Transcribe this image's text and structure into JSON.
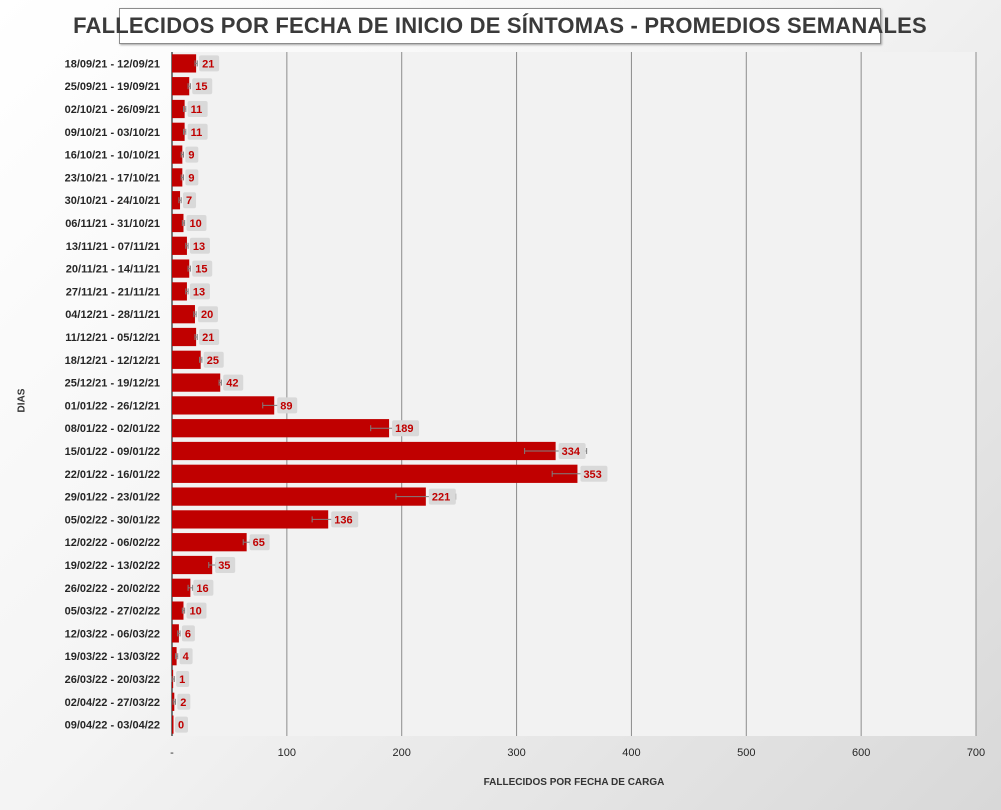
{
  "chart_data": {
    "type": "bar",
    "orientation": "horizontal",
    "title": "FALLECIDOS POR FECHA DE INICIO DE SÍNTOMAS - PROMEDIOS SEMANALES",
    "xlabel": "FALLECIDOS POR FECHA DE CARGA",
    "ylabel": "DIAS",
    "xlim": [
      0,
      700
    ],
    "xticks": [
      0,
      100,
      200,
      300,
      400,
      500,
      600,
      700
    ],
    "xtick_labels": [
      "-",
      "100",
      "200",
      "300",
      "400",
      "500",
      "600",
      "700"
    ],
    "grid": true,
    "bar_color": "#c00000",
    "label_bg_color": "#d9d9d9",
    "label_color": "#c00000",
    "plot_bg_color": "#f2f2f2",
    "categories": [
      "18/09/21 - 12/09/21",
      "25/09/21 - 19/09/21",
      "02/10/21 - 26/09/21",
      "09/10/21 - 03/10/21",
      "16/10/21 - 10/10/21",
      "23/10/21 - 17/10/21",
      "30/10/21 - 24/10/21",
      "06/11/21 - 31/10/21",
      "13/11/21 - 07/11/21",
      "20/11/21 - 14/11/21",
      "27/11/21 - 21/11/21",
      "04/12/21 - 28/11/21",
      "11/12/21 - 05/12/21",
      "18/12/21 - 12/12/21",
      "25/12/21 - 19/12/21",
      "01/01/22 - 26/12/21",
      "08/01/22 - 02/01/22",
      "15/01/22 - 09/01/22",
      "22/01/22 - 16/01/22",
      "29/01/22 - 23/01/22",
      "05/02/22 - 30/01/22",
      "12/02/22 - 06/02/22",
      "19/02/22 - 13/02/22",
      "26/02/22 - 20/02/22",
      "05/03/22 - 27/02/22",
      "12/03/22 - 06/03/22",
      "19/03/22 - 13/03/22",
      "26/03/22 - 20/03/22",
      "02/04/22 - 27/03/22",
      "09/04/22 - 03/04/22"
    ],
    "values": [
      21,
      15,
      11,
      11,
      9,
      9,
      7,
      10,
      13,
      15,
      13,
      20,
      21,
      25,
      42,
      89,
      189,
      334,
      353,
      221,
      136,
      65,
      35,
      16,
      10,
      6,
      4,
      1,
      2,
      0
    ],
    "error_bars": [
      1,
      1,
      1,
      1,
      1,
      1,
      1,
      1,
      1,
      1,
      1,
      1,
      1,
      1,
      1,
      10,
      16,
      27,
      22,
      26,
      14,
      3,
      3,
      2,
      1,
      1,
      1,
      1,
      1,
      0
    ]
  }
}
